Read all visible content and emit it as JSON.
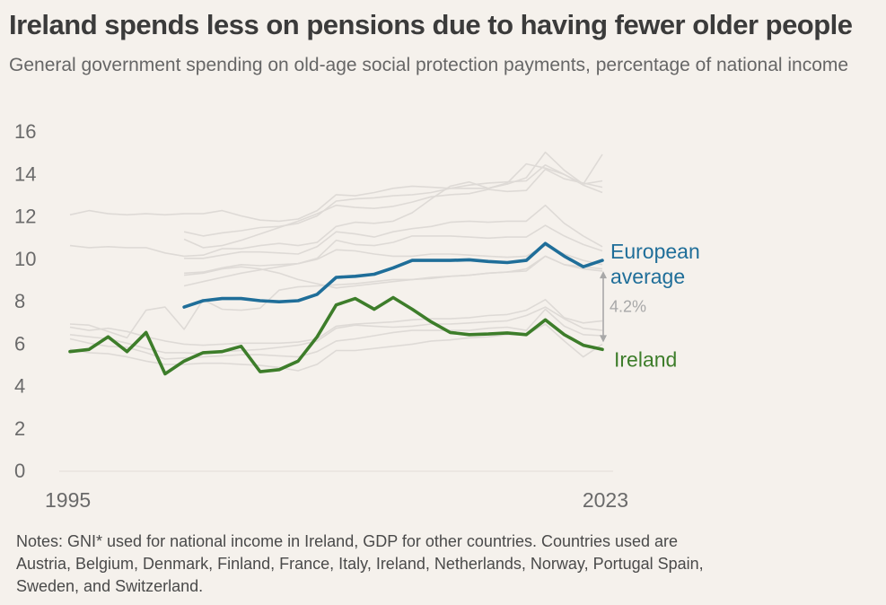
{
  "title": "Ireland spends less on pensions due to having fewer older people",
  "subtitle": "General government spending on old-age social protection payments, percentage of national income",
  "notes": "Notes: GNI* used for national income in Ireland, GDP for other countries. Countries used are Austria, Belgium, Denmark, Finland, France, Italy, Ireland, Netherlands, Norway, Portugal Spain, Sweden, and Switzerland.",
  "colors": {
    "background": "#f5f1ec",
    "ireland": "#3d7d2a",
    "european": "#1f6e99",
    "countries": "#dedad6",
    "annotation": "#a8a8a8",
    "axis_text": "#6a6a6a"
  },
  "chart_data": {
    "type": "line",
    "x_tick_labels": [
      "1995",
      "2023"
    ],
    "y_ticks": [
      0,
      2,
      4,
      6,
      8,
      10,
      12,
      14,
      16
    ],
    "ylim": [
      0,
      16
    ],
    "xlim": [
      1995,
      2023
    ],
    "grid": false,
    "series": [
      {
        "name": "European average",
        "label_lines": [
          "European",
          "average"
        ],
        "x": [
          2001,
          2002,
          2003,
          2004,
          2005,
          2006,
          2007,
          2008,
          2009,
          2010,
          2011,
          2012,
          2013,
          2014,
          2015,
          2016,
          2017,
          2018,
          2019,
          2020,
          2021,
          2022,
          2023
        ],
        "values": [
          7.7,
          8.0,
          8.1,
          8.1,
          8.0,
          7.95,
          8.0,
          8.3,
          9.1,
          9.15,
          9.25,
          9.55,
          9.9,
          9.9,
          9.9,
          9.93,
          9.85,
          9.8,
          9.9,
          10.7,
          10.1,
          9.6,
          9.9
        ]
      },
      {
        "name": "Ireland",
        "x": [
          1995,
          1996,
          1997,
          1998,
          1999,
          2000,
          2001,
          2002,
          2003,
          2004,
          2005,
          2006,
          2007,
          2008,
          2009,
          2010,
          2011,
          2012,
          2013,
          2014,
          2015,
          2016,
          2017,
          2018,
          2019,
          2020,
          2021,
          2022,
          2023
        ],
        "values": [
          5.6,
          5.7,
          6.3,
          5.6,
          6.5,
          4.55,
          5.15,
          5.55,
          5.6,
          5.85,
          4.65,
          4.75,
          5.15,
          6.3,
          7.8,
          8.1,
          7.6,
          8.15,
          7.6,
          7.0,
          6.5,
          6.4,
          6.43,
          6.48,
          6.4,
          7.1,
          6.4,
          5.9,
          5.7
        ]
      }
    ],
    "background_series_note": "Individual country series shown as unlabeled light grey lines",
    "background_series": [
      {
        "x": [
          1995,
          1996,
          1997,
          1998,
          1999,
          2000,
          2001,
          2002,
          2003,
          2004,
          2005,
          2006,
          2007,
          2008,
          2009,
          2010,
          2011,
          2012,
          2013,
          2014,
          2015,
          2016,
          2017,
          2018,
          2019,
          2020,
          2021,
          2022,
          2023
        ],
        "values": [
          12.05,
          12.25,
          12.1,
          12.05,
          12.1,
          12.05,
          12.1,
          12.1,
          12.25,
          12.0,
          11.8,
          11.75,
          11.85,
          12.25,
          13.0,
          12.95,
          13.1,
          13.3,
          13.4,
          13.35,
          13.3,
          13.3,
          13.3,
          13.55,
          14.45,
          14.25,
          13.95,
          13.45,
          13.1
        ]
      },
      {
        "x": [
          1995,
          1996,
          1997,
          1998,
          1999,
          2000,
          2001,
          2002,
          2003,
          2004,
          2005,
          2006,
          2007,
          2008,
          2009,
          2010,
          2011,
          2012,
          2013,
          2014,
          2015,
          2016,
          2017,
          2018,
          2019,
          2020,
          2021,
          2022,
          2023
        ],
        "values": [
          10.6,
          10.5,
          10.55,
          10.5,
          10.5,
          10.25,
          10.1,
          10.15,
          10.45,
          10.45,
          10.6,
          10.7,
          10.6,
          10.75,
          11.5,
          11.7,
          11.65,
          11.75,
          12.15,
          12.8,
          13.4,
          13.6,
          13.3,
          13.5,
          13.8,
          15.0,
          14.15,
          13.5,
          14.9
        ]
      },
      {
        "x": [
          2001,
          2002,
          2003,
          2004,
          2005,
          2006,
          2007,
          2008,
          2009,
          2010,
          2011,
          2012,
          2013,
          2014,
          2015,
          2016,
          2017,
          2018,
          2019,
          2020,
          2021,
          2022,
          2023
        ],
        "values": [
          11.25,
          11.05,
          11.2,
          11.3,
          11.45,
          11.5,
          11.65,
          12.0,
          12.7,
          12.8,
          12.85,
          12.95,
          13.0,
          13.1,
          13.3,
          13.45,
          13.55,
          13.6,
          13.65,
          14.4,
          13.95,
          13.5,
          13.65
        ]
      },
      {
        "x": [
          2001,
          2002,
          2003,
          2004,
          2005,
          2006,
          2007,
          2008,
          2009,
          2010,
          2011,
          2012,
          2013,
          2014,
          2015,
          2016,
          2017,
          2018,
          2019,
          2020,
          2021,
          2022,
          2023
        ],
        "values": [
          10.9,
          10.5,
          10.6,
          10.85,
          11.15,
          11.45,
          11.75,
          12.1,
          12.5,
          12.4,
          12.35,
          12.45,
          12.65,
          12.9,
          13.0,
          13.05,
          13.25,
          13.15,
          13.2,
          14.2,
          13.75,
          13.55,
          13.35
        ]
      },
      {
        "x": [
          2001,
          2002,
          2003,
          2004,
          2005,
          2006,
          2007,
          2008,
          2009,
          2010,
          2011,
          2012,
          2013,
          2014,
          2015,
          2016,
          2017,
          2018,
          2019,
          2020,
          2021,
          2022,
          2023
        ],
        "values": [
          10.0,
          10.0,
          10.15,
          10.3,
          10.3,
          10.25,
          10.2,
          10.55,
          11.25,
          11.15,
          11.0,
          11.25,
          11.4,
          11.5,
          11.7,
          11.75,
          11.7,
          11.75,
          11.75,
          12.5,
          11.65,
          11.05,
          10.55
        ]
      },
      {
        "x": [
          2001,
          2002,
          2003,
          2004,
          2005,
          2006,
          2007,
          2008,
          2009,
          2010,
          2011,
          2012,
          2013,
          2014,
          2015,
          2016,
          2017,
          2018,
          2019,
          2020,
          2021,
          2022,
          2023
        ],
        "values": [
          9.3,
          9.35,
          9.55,
          9.7,
          9.65,
          9.7,
          9.75,
          10.0,
          10.85,
          10.65,
          10.6,
          10.75,
          11.05,
          11.05,
          11.05,
          11.0,
          10.95,
          11.0,
          11.0,
          11.55,
          11.05,
          10.65,
          10.35
        ]
      },
      {
        "x": [
          2001,
          2002,
          2003,
          2004,
          2005,
          2006,
          2007,
          2008,
          2009,
          2010,
          2011,
          2012,
          2013,
          2014,
          2015,
          2016,
          2017,
          2018,
          2019,
          2020,
          2021,
          2022,
          2023
        ],
        "values": [
          8.7,
          8.9,
          9.1,
          9.3,
          9.45,
          9.6,
          9.75,
          9.95,
          10.4,
          10.35,
          10.2,
          10.1,
          10.1,
          10.2,
          10.2,
          10.15,
          10.1,
          10.05,
          10.1,
          10.6,
          10.2,
          9.9,
          9.7
        ]
      },
      {
        "x": [
          2001,
          2002,
          2003,
          2004,
          2005,
          2006,
          2007,
          2008,
          2009,
          2010,
          2011,
          2012,
          2013,
          2014,
          2015,
          2016,
          2017,
          2018,
          2019,
          2020,
          2021,
          2022,
          2023
        ],
        "values": [
          9.2,
          9.3,
          9.5,
          9.6,
          9.5,
          9.3,
          9.0,
          8.8,
          8.6,
          8.7,
          8.8,
          8.9,
          9.0,
          9.1,
          9.15,
          9.2,
          9.3,
          9.35,
          9.5,
          10.1,
          9.7,
          9.6,
          9.5
        ]
      },
      {
        "x": [
          1995,
          1996,
          1997,
          1998,
          1999,
          2000,
          2001,
          2002,
          2003,
          2004,
          2005,
          2006,
          2007,
          2008,
          2009,
          2010,
          2011,
          2012,
          2013,
          2014,
          2015,
          2016,
          2017,
          2018,
          2019,
          2020,
          2021,
          2022,
          2023
        ],
        "values": [
          6.9,
          6.85,
          6.55,
          6.25,
          7.55,
          7.7,
          6.65,
          8.05,
          7.6,
          7.55,
          7.65,
          8.5,
          8.65,
          8.7,
          8.75,
          8.8,
          8.9,
          9.0,
          9.0,
          9.05,
          9.15,
          9.2,
          9.3,
          9.35,
          9.4,
          10.1,
          9.7,
          9.5,
          9.4
        ]
      },
      {
        "x": [
          1995,
          1996,
          1997,
          1998,
          1999,
          2000,
          2001,
          2002,
          2003,
          2004,
          2005,
          2006,
          2007,
          2008,
          2009,
          2010,
          2011,
          2012,
          2013,
          2014,
          2015,
          2016,
          2017,
          2018,
          2019,
          2020,
          2021,
          2022,
          2023
        ],
        "values": [
          6.75,
          6.6,
          6.7,
          6.55,
          6.3,
          6.1,
          5.95,
          5.9,
          5.95,
          6.0,
          6.0,
          6.0,
          6.05,
          6.2,
          6.8,
          6.9,
          6.95,
          7.0,
          7.1,
          7.15,
          7.15,
          7.2,
          7.3,
          7.35,
          7.55,
          8.05,
          7.2,
          6.95,
          7.05
        ]
      },
      {
        "x": [
          1995,
          1996,
          1997,
          1998,
          1999,
          2000,
          2001,
          2002,
          2003,
          2004,
          2005,
          2006,
          2007,
          2008,
          2009,
          2010,
          2011,
          2012,
          2013,
          2014,
          2015,
          2016,
          2017,
          2018,
          2019,
          2020,
          2021,
          2022,
          2023
        ],
        "values": [
          6.4,
          6.3,
          6.2,
          6.0,
          5.75,
          5.55,
          5.55,
          5.5,
          5.6,
          5.65,
          5.7,
          5.8,
          5.9,
          6.1,
          6.7,
          6.85,
          6.8,
          6.75,
          6.8,
          6.9,
          6.9,
          6.95,
          7.0,
          7.05,
          7.3,
          7.7,
          7.15,
          6.7,
          6.6
        ]
      },
      {
        "x": [
          1995,
          1996,
          1997,
          1998,
          1999,
          2000,
          2001,
          2002,
          2003,
          2004,
          2005,
          2006,
          2007,
          2008,
          2009,
          2010,
          2011,
          2012,
          2013,
          2014,
          2015,
          2016,
          2017,
          2018,
          2019,
          2020,
          2021,
          2022,
          2023
        ],
        "values": [
          6.2,
          6.0,
          5.85,
          5.8,
          5.55,
          5.25,
          5.3,
          5.35,
          5.4,
          5.45,
          5.45,
          5.4,
          5.35,
          5.6,
          6.1,
          6.2,
          6.35,
          6.5,
          6.6,
          6.6,
          6.6,
          6.6,
          6.7,
          6.75,
          6.6,
          7.6,
          6.8,
          6.4,
          6.35
        ]
      },
      {
        "x": [
          1995,
          1996,
          1997,
          1998,
          1999,
          2000,
          2001,
          2002,
          2003,
          2004,
          2005,
          2006,
          2007,
          2008,
          2009,
          2010,
          2011,
          2012,
          2013,
          2014,
          2015,
          2016,
          2017,
          2018,
          2019,
          2020,
          2021,
          2022,
          2023
        ],
        "values": [
          5.7,
          5.55,
          5.5,
          5.35,
          5.15,
          5.0,
          5.0,
          5.05,
          5.05,
          5.0,
          4.95,
          4.85,
          4.7,
          5.0,
          5.65,
          5.65,
          5.75,
          5.85,
          5.95,
          6.1,
          6.15,
          6.25,
          6.3,
          6.4,
          6.4,
          6.9,
          6.1,
          5.35,
          5.95
        ]
      }
    ],
    "annotation": {
      "text": "4.2%",
      "from_value": 9.9,
      "to_value": 5.7
    }
  }
}
